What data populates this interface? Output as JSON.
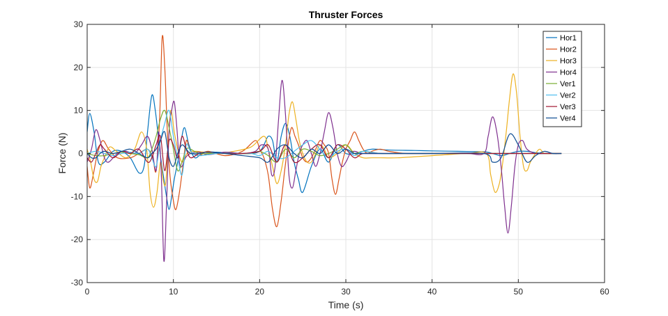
{
  "chart_data": {
    "type": "line",
    "title": "Thruster Forces",
    "xlabel": "Time (s)",
    "ylabel": "Force (N)",
    "xlim": [
      0,
      60
    ],
    "ylim": [
      -30,
      30
    ],
    "xticks": [
      0,
      10,
      20,
      30,
      40,
      50,
      60
    ],
    "yticks": [
      -30,
      -20,
      -10,
      0,
      10,
      20,
      30
    ],
    "grid": true,
    "legend_position": "top-right",
    "series": [
      {
        "name": "Hor1",
        "color": "#0072BD",
        "x": [
          0,
          0.3,
          0.8,
          1.3,
          2,
          3,
          4,
          5,
          6,
          6.6,
          7,
          7.5,
          7.9,
          8.3,
          8.6,
          8.9,
          9.2,
          9.5,
          9.8,
          10.1,
          10.5,
          10.9,
          11.3,
          11.8,
          12.5,
          13.5,
          15,
          17,
          19,
          20,
          20.5,
          21,
          21.5,
          22,
          22.5,
          23,
          23.5,
          24,
          24.5,
          25,
          26,
          27,
          28,
          29,
          30,
          31,
          32,
          33,
          35,
          38,
          40,
          43,
          46,
          47,
          48,
          49,
          50,
          51,
          52,
          53,
          54,
          55
        ],
        "y": [
          5,
          9.3,
          5,
          -2,
          -2,
          0.5,
          0.5,
          -1,
          -4.5,
          -3,
          5,
          13.5,
          10,
          3,
          -2,
          -6,
          -10,
          -13,
          -10,
          -6,
          -2,
          3,
          6,
          2,
          -1,
          0.3,
          0.3,
          0,
          0,
          0.5,
          2,
          4,
          3,
          -2,
          4,
          7,
          4,
          -2,
          -6,
          -9,
          -3,
          1,
          -2,
          2,
          0,
          0,
          0.5,
          1,
          0.8,
          0.7,
          0.6,
          0.5,
          0.4,
          0,
          -0.5,
          0,
          0.5,
          0.5,
          0.2,
          0,
          0,
          0
        ]
      },
      {
        "name": "Hor2",
        "color": "#D95319",
        "x": [
          0,
          0.3,
          0.7,
          1.2,
          1.8,
          2.5,
          3.5,
          5,
          6,
          7,
          7.6,
          8,
          8.4,
          8.7,
          9,
          9.3,
          9.6,
          10,
          10.3,
          10.7,
          11.1,
          11.5,
          12,
          13,
          14,
          16,
          18,
          19.5,
          20,
          20.5,
          21,
          21.5,
          22,
          22.5,
          22.9,
          23.3,
          23.7,
          24.1,
          24.5,
          25,
          25.5,
          26,
          26.5,
          27,
          27.5,
          28,
          28.4,
          28.8,
          29.2,
          29.6,
          30,
          30.5,
          31,
          31.5,
          32,
          32.5,
          33,
          34,
          35,
          37,
          40,
          43,
          46,
          48,
          50,
          52,
          55
        ],
        "y": [
          -3,
          -8,
          -5,
          0,
          3,
          1,
          -1,
          -1,
          0,
          1,
          -1,
          -4,
          8,
          27,
          20,
          5,
          -5,
          -11,
          -13,
          -9,
          -3,
          3,
          0.5,
          -0.5,
          0.5,
          -0.5,
          0.5,
          3,
          1,
          -1,
          -5,
          -13,
          -17,
          -11,
          -4,
          2,
          6,
          4,
          2,
          -1,
          -2,
          -1,
          1,
          3,
          2,
          0,
          -6,
          -9.5,
          -6,
          -2,
          1,
          3,
          5,
          3,
          1,
          0,
          0.5,
          1,
          0.5,
          0,
          0,
          0,
          0,
          0,
          0,
          0,
          0
        ]
      },
      {
        "name": "Hor3",
        "color": "#EDB120",
        "x": [
          0,
          0.4,
          0.8,
          1.2,
          1.6,
          2,
          2.6,
          3.4,
          4.5,
          5.5,
          6.3,
          6.9,
          7.3,
          7.7,
          8.1,
          8.5,
          8.8,
          9.1,
          9.4,
          9.7,
          10.1,
          10.5,
          11,
          11.6,
          12.5,
          13.5,
          15,
          17,
          19,
          20.5,
          21,
          21.5,
          22,
          22.5,
          23,
          23.4,
          23.8,
          24.2,
          24.6,
          25,
          25.5,
          26,
          26.5,
          27,
          27.5,
          28,
          29,
          30,
          31,
          32,
          33,
          34,
          36,
          40,
          44,
          46.3,
          46.8,
          47.3,
          47.8,
          48.2,
          48.6,
          49,
          49.4,
          49.8,
          50.2,
          50.6,
          51,
          51.4,
          52,
          52.5,
          53,
          54,
          55
        ],
        "y": [
          1,
          -2,
          -6,
          -6.5,
          -3,
          -1,
          1.5,
          0.5,
          -1,
          1,
          5,
          1,
          -9,
          -12.5,
          -9,
          -2,
          -6,
          -7,
          2,
          10,
          5,
          1,
          -2,
          0,
          0.5,
          0.3,
          0,
          0.5,
          1.5,
          4,
          1,
          -3,
          -7,
          -4,
          2,
          9,
          12,
          8,
          3,
          0,
          -2,
          -2,
          0,
          2,
          1,
          -1,
          0,
          2,
          0,
          -1,
          -1,
          -1,
          -1,
          -0.5,
          0,
          0,
          -5,
          -9,
          -7,
          -2,
          5,
          13,
          18.5,
          14,
          4,
          -3,
          -4,
          -2,
          0,
          1,
          0,
          0,
          0
        ]
      },
      {
        "name": "Hor4",
        "color": "#7E2F8E",
        "x": [
          0,
          0.5,
          1,
          1.5,
          2,
          2.5,
          3.5,
          4.5,
          5.5,
          6.3,
          7,
          7.5,
          8,
          8.3,
          8.6,
          8.9,
          9.2,
          9.5,
          9.8,
          10.1,
          10.4,
          10.7,
          11,
          11.4,
          12,
          13,
          14,
          16,
          18,
          19.5,
          20.2,
          21,
          21.4,
          21.8,
          22.2,
          22.6,
          23,
          23.4,
          23.8,
          24.2,
          24.6,
          25,
          25.5,
          26,
          26.5,
          27,
          27.5,
          28,
          28.5,
          29,
          29.5,
          30,
          30.5,
          31,
          32,
          34,
          36,
          40,
          44,
          46,
          46.5,
          47,
          47.5,
          48,
          48.4,
          48.8,
          49.2,
          49.6,
          50,
          50.5,
          51,
          52,
          53,
          54,
          55
        ],
        "y": [
          -2,
          1,
          5.5,
          3,
          -1,
          -2,
          0,
          0.5,
          0,
          2,
          4,
          1,
          -4,
          5,
          -5,
          -25,
          -12,
          5,
          10,
          12,
          6,
          -2,
          -3,
          -1,
          0,
          0.3,
          -0.3,
          0.3,
          0,
          0.5,
          2,
          1,
          -5,
          -3,
          8,
          17,
          9,
          -5,
          -8,
          -4,
          0,
          2,
          3,
          0,
          -3,
          0,
          5,
          9.5,
          6,
          0,
          -3,
          -2,
          0,
          0.5,
          0,
          0,
          0,
          0,
          0,
          0,
          4,
          8.5,
          5,
          -3,
          -12,
          -18.5,
          -12,
          -3,
          2,
          3,
          1,
          0,
          0,
          0,
          0
        ]
      },
      {
        "name": "Ver1",
        "color": "#77AC30",
        "x": [
          0,
          1,
          2,
          3,
          4,
          5,
          6,
          7,
          7.5,
          8,
          8.5,
          9,
          9.5,
          10,
          10.5,
          11,
          11.5,
          12,
          13,
          15,
          17,
          19,
          20,
          21,
          22,
          23,
          24,
          25,
          26,
          27,
          28,
          29,
          30,
          31,
          32,
          34,
          36,
          40,
          45,
          50,
          55
        ],
        "y": [
          0,
          -0.5,
          -0.5,
          0,
          0.3,
          0,
          -0.3,
          -1,
          1,
          4,
          8,
          10,
          6,
          1,
          -4,
          -2,
          1,
          1,
          0,
          0,
          0,
          0,
          0.5,
          -0.5,
          -2,
          1,
          -1,
          1,
          0.5,
          -0.5,
          0,
          1,
          2,
          0,
          0.5,
          0,
          0,
          0,
          0,
          0,
          0
        ]
      },
      {
        "name": "Ver2",
        "color": "#4DBEEE",
        "x": [
          0,
          1,
          2,
          3,
          4,
          5,
          6,
          7,
          7.5,
          8,
          8.5,
          9,
          9.5,
          10,
          10.5,
          11,
          11.5,
          12,
          13,
          15,
          17,
          19,
          20,
          21,
          22,
          23,
          24,
          25,
          26,
          27,
          28,
          29,
          30,
          31,
          32,
          34,
          36,
          40,
          45,
          50,
          55
        ],
        "y": [
          0,
          0.5,
          0,
          -0.5,
          0,
          0.3,
          0,
          1,
          -1,
          -3,
          3,
          7,
          10,
          4,
          -1,
          -5,
          2,
          0.5,
          -0.5,
          0,
          0,
          0,
          -0.5,
          0.5,
          -1,
          -1,
          0.5,
          2,
          3,
          1,
          -1,
          0.5,
          1,
          -0.5,
          0.5,
          0,
          0,
          0,
          0,
          0,
          0
        ]
      },
      {
        "name": "Ver3",
        "color": "#A2142F",
        "x": [
          0,
          0.5,
          1,
          1.5,
          2,
          3,
          4,
          5,
          6,
          7,
          7.5,
          8,
          8.5,
          9,
          9.5,
          10,
          10.5,
          11,
          11.5,
          12,
          13,
          14,
          16,
          18,
          20,
          21,
          22,
          23,
          24,
          25,
          26,
          27,
          28,
          29,
          30,
          31,
          32,
          34,
          36,
          40,
          45,
          50,
          55
        ],
        "y": [
          -1,
          -2,
          0,
          2,
          1,
          -1,
          0.5,
          0,
          1,
          -2,
          -1,
          2,
          4,
          -4,
          3,
          2,
          -1,
          4,
          1,
          -1,
          0,
          0.3,
          0,
          0,
          0.5,
          2,
          -2,
          2,
          -2,
          -1,
          1,
          2,
          -1,
          2,
          1,
          -1,
          0,
          0,
          0,
          0,
          0,
          0,
          0
        ]
      },
      {
        "name": "Ver4",
        "color": "#0E4D92",
        "x": [
          0,
          0.5,
          1,
          1.5,
          2,
          3,
          4,
          5,
          6,
          7,
          7.5,
          8,
          8.5,
          9,
          9.5,
          10,
          10.5,
          11,
          11.5,
          12,
          13,
          14,
          16,
          18,
          20,
          21,
          22,
          23,
          24,
          25,
          26,
          27,
          28,
          29,
          30,
          31,
          32,
          34,
          36,
          40,
          46,
          47,
          48,
          49,
          50,
          51,
          52,
          53,
          54,
          55
        ],
        "y": [
          0,
          -1,
          -1,
          0,
          0.5,
          0,
          0.5,
          1,
          0,
          -1,
          0,
          1,
          3,
          5,
          -1,
          -3,
          0,
          2,
          1,
          0,
          0,
          0.3,
          0,
          -0.5,
          -1,
          -2,
          1,
          2,
          0,
          -1,
          1,
          0,
          2,
          0,
          1,
          0,
          0,
          0,
          0,
          0,
          0,
          -2,
          -1,
          4.5,
          2,
          -2,
          -0.5,
          0.5,
          0,
          0
        ]
      }
    ]
  }
}
